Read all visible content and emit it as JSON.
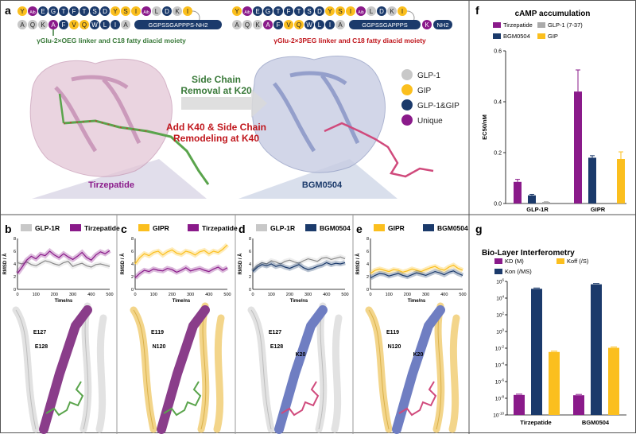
{
  "colors": {
    "glp1": "#c8c8c8",
    "gip": "#fbbf1e",
    "both": "#1b3a6b",
    "unique": "#8a1a8a",
    "teal": "#3a7a3a",
    "red": "#c0161c",
    "tirz": "#8a1a8a",
    "bgm": "#1b3a6b"
  },
  "panel_labels": {
    "a": "a",
    "b": "b",
    "c": "c",
    "d": "d",
    "e": "e",
    "f": "f",
    "g": "g"
  },
  "seq": {
    "tirz_top": [
      "Y",
      "Aib",
      "E",
      "G",
      "T",
      "F",
      "T",
      "S",
      "D",
      "Y",
      "S",
      "I",
      "Aib",
      "L",
      "D",
      "K",
      "I"
    ],
    "tirz_top_types": [
      "gip",
      "unique",
      "both",
      "both",
      "both",
      "both",
      "both",
      "both",
      "both",
      "gip",
      "gip",
      "gip",
      "unique",
      "glp1",
      "both",
      "glp1",
      "gip"
    ],
    "tirz_bot": [
      "A",
      "Q",
      "K",
      "A",
      "F",
      "V",
      "Q",
      "W",
      "L",
      "I",
      "A"
    ],
    "tirz_bot_types": [
      "glp1",
      "glp1",
      "glp1",
      "unique",
      "both",
      "gip",
      "gip",
      "both",
      "both",
      "both",
      "glp1"
    ],
    "tirz_tail": "GGPSSGAPPPS-NH2",
    "tirz_caption": "γGlu-2×OEG linker and C18 fatty diacid moiety",
    "bgm_top": [
      "Y",
      "Aib",
      "E",
      "G",
      "T",
      "F",
      "T",
      "S",
      "D",
      "Y",
      "S",
      "I",
      "Aib",
      "L",
      "D",
      "K",
      "I"
    ],
    "bgm_top_types": [
      "gip",
      "unique",
      "both",
      "both",
      "both",
      "both",
      "both",
      "both",
      "both",
      "gip",
      "gip",
      "gip",
      "unique",
      "glp1",
      "both",
      "glp1",
      "gip"
    ],
    "bgm_bot": [
      "A",
      "Q",
      "K",
      "A",
      "F",
      "V",
      "Q",
      "W",
      "L",
      "I",
      "A"
    ],
    "bgm_bot_types": [
      "glp1",
      "glp1",
      "glp1",
      "unique",
      "both",
      "gip",
      "gip",
      "both",
      "both",
      "both",
      "glp1"
    ],
    "bgm_tail": "GGPSSGAPPPS",
    "bgm_k": "K",
    "bgm_nh2": "NH2",
    "bgm_caption": "γGlu-2×3PEG linker and C18 fatty diacid moiety"
  },
  "panel_a": {
    "arrow_line1": "Side Chain",
    "arrow_line2": "Removal at K20",
    "add_line1": "Add K40 & Side Chain",
    "add_line2": "Remodeling at K40",
    "tirz_name": "Tirzepatide",
    "bgm_name": "BGM0504",
    "legend": [
      {
        "label": "GLP-1",
        "type": "glp1"
      },
      {
        "label": "GIP",
        "type": "gip"
      },
      {
        "label": "GLP-1&GIP",
        "type": "both"
      },
      {
        "label": "Unique",
        "type": "unique"
      }
    ]
  },
  "rmsd_panels": [
    {
      "id": "b",
      "legend": [
        "GLP-1R",
        "Tirzepatide"
      ],
      "ylabel": "RMSD / Å",
      "xlabel": "Time/ns",
      "ticks_x": [
        "0",
        "100",
        "200",
        "300",
        "400",
        "500"
      ],
      "ticks_y": [
        "0",
        "2",
        "4",
        "6",
        "8"
      ],
      "series_a": [
        4.2,
        4.0,
        4.3,
        3.9,
        3.7,
        4.1,
        4.5,
        4.3,
        4.0,
        3.8,
        4.2,
        4.4,
        3.6,
        3.9,
        4.1,
        3.7,
        3.5,
        3.9,
        4.0,
        3.8,
        3.6
      ],
      "series_b": [
        2.5,
        3.5,
        4.6,
        5.2,
        4.8,
        5.5,
        5.3,
        6.0,
        5.4,
        5.0,
        5.6,
        5.1,
        4.7,
        5.2,
        5.8,
        5.0,
        4.6,
        5.4,
        5.9,
        5.6,
        6.1
      ],
      "cA": "glp1",
      "cB": "tirz",
      "residues": [
        "E127",
        "E128"
      ]
    },
    {
      "id": "c",
      "legend": [
        "GIPR",
        "Tirzepatide"
      ],
      "ylabel": "RMSD / Å",
      "xlabel": "Time/ns",
      "ticks_x": [
        "0",
        "100",
        "200",
        "300",
        "400",
        "500"
      ],
      "ticks_y": [
        "0",
        "2",
        "4",
        "6",
        "8"
      ],
      "series_a": [
        4.0,
        5.0,
        5.6,
        5.3,
        5.8,
        6.0,
        5.4,
        5.9,
        6.2,
        5.7,
        5.5,
        6.0,
        5.8,
        5.4,
        5.9,
        6.1,
        5.6,
        6.0,
        5.8,
        6.3,
        7.0
      ],
      "series_b": [
        1.8,
        2.5,
        3.0,
        2.8,
        3.2,
        3.0,
        2.9,
        3.3,
        3.1,
        2.7,
        3.0,
        3.4,
        2.9,
        3.1,
        3.3,
        3.0,
        2.8,
        3.2,
        3.5,
        3.0,
        3.4
      ],
      "cA": "gip",
      "cB": "tirz",
      "residues": [
        "E119",
        "N120"
      ]
    },
    {
      "id": "d",
      "legend": [
        "GLP-1R",
        "BGM0504"
      ],
      "ylabel": "RMSD / Å",
      "xlabel": "Time/ns",
      "ticks_x": [
        "0",
        "100",
        "200",
        "300",
        "400",
        "500"
      ],
      "ticks_y": [
        "0",
        "2",
        "4",
        "6",
        "8"
      ],
      "series_a": [
        3.0,
        3.8,
        4.2,
        4.0,
        4.5,
        4.3,
        4.0,
        4.4,
        4.6,
        4.3,
        4.1,
        4.5,
        4.8,
        4.6,
        4.4,
        4.9,
        5.0,
        4.7,
        4.9,
        5.1,
        4.8
      ],
      "series_b": [
        2.8,
        3.5,
        3.9,
        3.7,
        4.0,
        3.6,
        3.8,
        3.5,
        3.3,
        3.6,
        3.9,
        3.4,
        3.1,
        3.3,
        3.6,
        3.8,
        4.2,
        3.9,
        4.1,
        4.0,
        4.2
      ],
      "cA": "glp1",
      "cB": "bgm",
      "residues": [
        "E127",
        "E128",
        "K20"
      ]
    },
    {
      "id": "e",
      "legend": [
        "GIPR",
        "BGM0504"
      ],
      "ylabel": "RMSD / Å",
      "xlabel": "Time/ns",
      "ticks_x": [
        "0",
        "100",
        "200",
        "300",
        "400",
        "500"
      ],
      "ticks_y": [
        "0",
        "2",
        "4",
        "6",
        "8"
      ],
      "series_a": [
        2.5,
        3.0,
        3.2,
        3.0,
        2.8,
        3.1,
        3.0,
        2.7,
        2.9,
        3.2,
        3.0,
        2.8,
        3.1,
        3.4,
        3.6,
        3.2,
        3.0,
        3.5,
        3.8,
        3.3,
        3.0
      ],
      "series_b": [
        1.8,
        2.2,
        2.5,
        2.4,
        2.1,
        2.3,
        2.5,
        2.2,
        2.0,
        2.3,
        2.6,
        2.4,
        2.2,
        2.5,
        2.8,
        2.6,
        2.3,
        2.7,
        2.9,
        2.5,
        2.2
      ],
      "cA": "gip",
      "cB": "bgm",
      "residues": [
        "E119",
        "N120",
        "K20"
      ]
    }
  ],
  "chart_data": [
    {
      "type": "bar",
      "title": "cAMP accumulation",
      "ylabel": "EC50/nM",
      "categories": [
        "GLP-1R",
        "GIPR"
      ],
      "ylim": [
        0,
        0.6
      ],
      "yticks": [
        "0.0",
        "0.2",
        "0.4",
        "0.6"
      ],
      "series": [
        {
          "name": "Tirzepatide",
          "color": "#8a1a8a",
          "values": [
            0.085,
            0.44
          ],
          "err": [
            0.01,
            0.085
          ]
        },
        {
          "name": "BGM0504",
          "color": "#1b3a6b",
          "values": [
            0.032,
            0.18
          ],
          "err": [
            0.004,
            0.008
          ]
        },
        {
          "name": "GLP-1 (7-37)",
          "color": "#aaaaaa",
          "values": [
            0.006,
            0
          ],
          "err": [
            0.001,
            0
          ]
        },
        {
          "name": "GIP",
          "color": "#fbbf1e",
          "values": [
            0,
            0.175
          ],
          "err": [
            0,
            0.028
          ]
        }
      ]
    },
    {
      "type": "bar",
      "title": "Bio-Layer Interferometry",
      "scale": "log",
      "categories": [
        "Tirzepatide",
        "BGM0504"
      ],
      "yticks": [
        "10^-10",
        "10^-8",
        "10^-6",
        "10^-4",
        "10^-2",
        "10^0",
        "10^2",
        "10^4",
        "10^6"
      ],
      "yexp": [
        -10,
        -8,
        -6,
        -4,
        -2,
        0,
        2,
        4,
        6
      ],
      "series": [
        {
          "name": "KD (M)",
          "color": "#8a1a8a",
          "values": [
            2.5e-08,
            2.3e-08
          ]
        },
        {
          "name": "Kon (/MS)",
          "color": "#1b3a6b",
          "values": [
            130000.0,
            450000.0
          ]
        },
        {
          "name": "Koff (/S)",
          "color": "#fbbf1e",
          "values": [
            0.0035,
            0.011
          ]
        }
      ]
    }
  ]
}
